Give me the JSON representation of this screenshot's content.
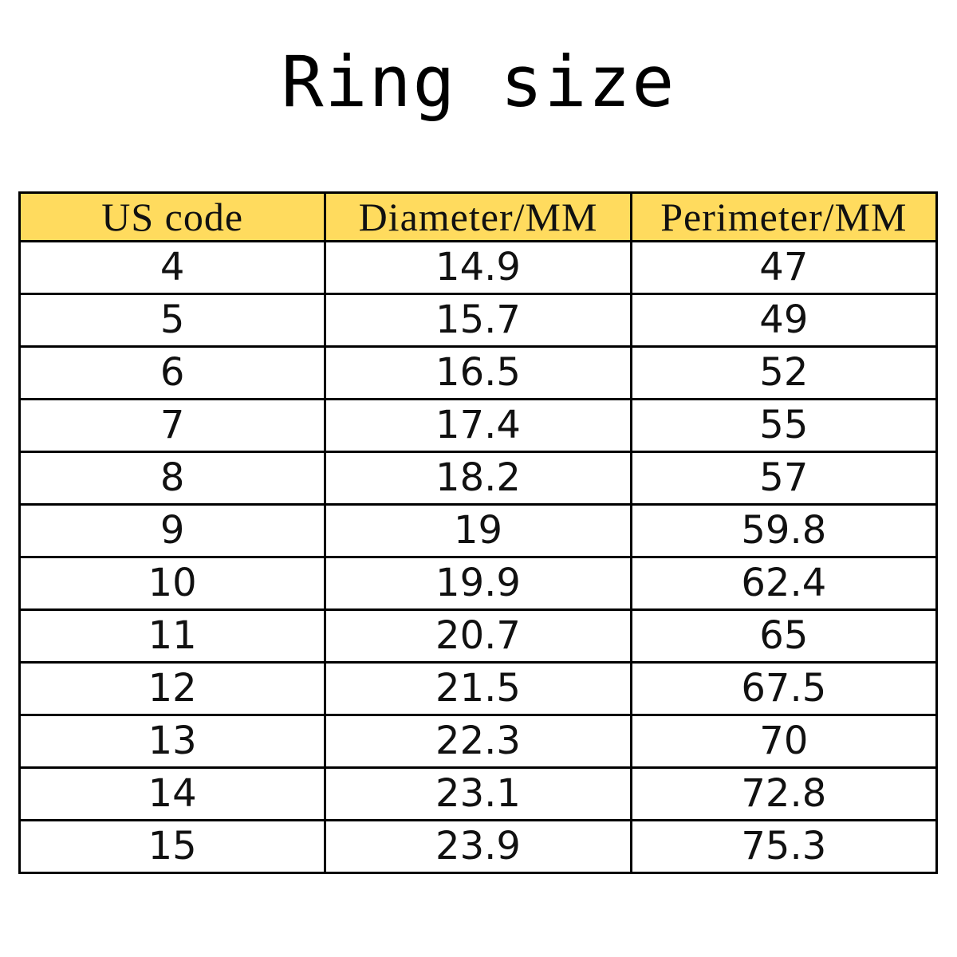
{
  "title": "Ring size",
  "header_color": "#FFDB5E",
  "table": {
    "headers": [
      "US code",
      "Diameter/MM",
      "Perimeter/MM"
    ],
    "rows": [
      [
        "4",
        "14.9",
        "47"
      ],
      [
        "5",
        "15.7",
        "49"
      ],
      [
        "6",
        "16.5",
        "52"
      ],
      [
        "7",
        "17.4",
        "55"
      ],
      [
        "8",
        "18.2",
        "57"
      ],
      [
        "9",
        "19",
        "59.8"
      ],
      [
        "10",
        "19.9",
        "62.4"
      ],
      [
        "11",
        "20.7",
        "65"
      ],
      [
        "12",
        "21.5",
        "67.5"
      ],
      [
        "13",
        "22.3",
        "70"
      ],
      [
        "14",
        "23.1",
        "72.8"
      ],
      [
        "15",
        "23.9",
        "75.3"
      ]
    ]
  }
}
